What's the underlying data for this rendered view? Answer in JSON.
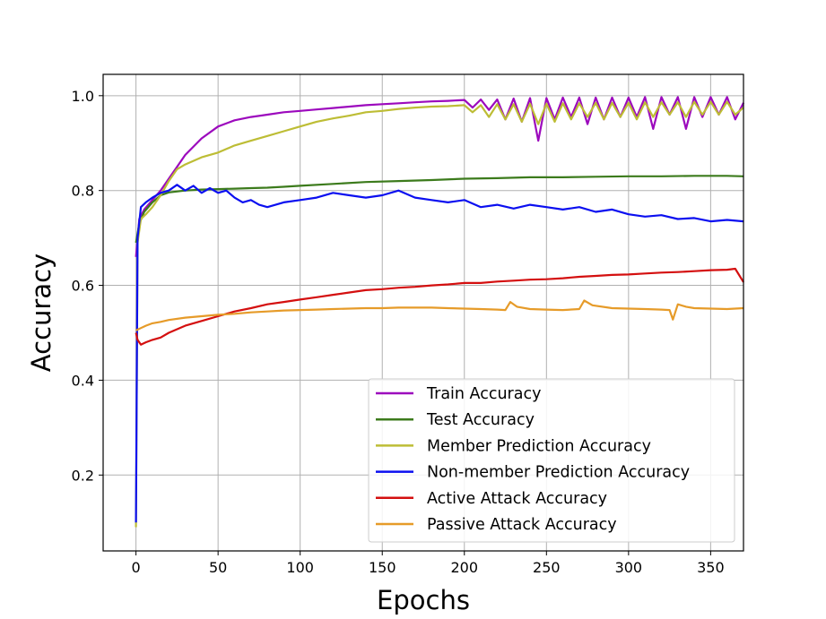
{
  "chart_data": {
    "type": "line",
    "title": "",
    "xlabel": "Epochs",
    "ylabel": "Accuracy",
    "xlim": [
      -20,
      370
    ],
    "ylim": [
      0.04,
      1.045
    ],
    "xticks": [
      0,
      50,
      100,
      150,
      200,
      250,
      300,
      350
    ],
    "yticks": [
      0.2,
      0.4,
      0.6,
      0.8,
      1.0
    ],
    "ytick_labels": [
      "0.2",
      "0.4",
      "0.6",
      "0.8",
      "1.0"
    ],
    "grid": true,
    "legend_position": "bottom-right",
    "series": [
      {
        "name": "Train Accuracy",
        "color": "#9c09bd",
        "points": [
          [
            0,
            0.66
          ],
          [
            2,
            0.74
          ],
          [
            5,
            0.76
          ],
          [
            10,
            0.78
          ],
          [
            15,
            0.8
          ],
          [
            20,
            0.825
          ],
          [
            25,
            0.85
          ],
          [
            30,
            0.875
          ],
          [
            40,
            0.91
          ],
          [
            50,
            0.935
          ],
          [
            60,
            0.948
          ],
          [
            70,
            0.955
          ],
          [
            80,
            0.96
          ],
          [
            90,
            0.965
          ],
          [
            100,
            0.968
          ],
          [
            110,
            0.971
          ],
          [
            120,
            0.974
          ],
          [
            130,
            0.977
          ],
          [
            140,
            0.98
          ],
          [
            150,
            0.982
          ],
          [
            160,
            0.984
          ],
          [
            170,
            0.986
          ],
          [
            180,
            0.988
          ],
          [
            190,
            0.989
          ],
          [
            200,
            0.991
          ],
          [
            205,
            0.975
          ],
          [
            210,
            0.992
          ],
          [
            215,
            0.97
          ],
          [
            220,
            0.992
          ],
          [
            225,
            0.95
          ],
          [
            230,
            0.994
          ],
          [
            235,
            0.945
          ],
          [
            240,
            0.995
          ],
          [
            245,
            0.905
          ],
          [
            250,
            0.995
          ],
          [
            255,
            0.95
          ],
          [
            260,
            0.996
          ],
          [
            265,
            0.955
          ],
          [
            270,
            0.996
          ],
          [
            275,
            0.94
          ],
          [
            280,
            0.996
          ],
          [
            285,
            0.95
          ],
          [
            290,
            0.996
          ],
          [
            295,
            0.955
          ],
          [
            300,
            0.996
          ],
          [
            305,
            0.955
          ],
          [
            310,
            0.997
          ],
          [
            315,
            0.93
          ],
          [
            320,
            0.997
          ],
          [
            325,
            0.96
          ],
          [
            330,
            0.997
          ],
          [
            335,
            0.93
          ],
          [
            340,
            0.997
          ],
          [
            345,
            0.955
          ],
          [
            350,
            0.997
          ],
          [
            355,
            0.96
          ],
          [
            360,
            0.997
          ],
          [
            365,
            0.95
          ],
          [
            370,
            0.985
          ]
        ]
      },
      {
        "name": "Test Accuracy",
        "color": "#3c7b1c",
        "points": [
          [
            0,
            0.69
          ],
          [
            2,
            0.73
          ],
          [
            5,
            0.755
          ],
          [
            10,
            0.775
          ],
          [
            15,
            0.79
          ],
          [
            20,
            0.796
          ],
          [
            30,
            0.8
          ],
          [
            40,
            0.802
          ],
          [
            50,
            0.803
          ],
          [
            60,
            0.804
          ],
          [
            70,
            0.805
          ],
          [
            80,
            0.806
          ],
          [
            90,
            0.808
          ],
          [
            100,
            0.81
          ],
          [
            120,
            0.814
          ],
          [
            140,
            0.818
          ],
          [
            160,
            0.82
          ],
          [
            180,
            0.822
          ],
          [
            200,
            0.825
          ],
          [
            220,
            0.826
          ],
          [
            240,
            0.828
          ],
          [
            260,
            0.828
          ],
          [
            280,
            0.829
          ],
          [
            300,
            0.83
          ],
          [
            320,
            0.83
          ],
          [
            340,
            0.831
          ],
          [
            360,
            0.831
          ],
          [
            370,
            0.83
          ]
        ]
      },
      {
        "name": "Member Prediction Accuracy",
        "color": "#bdbd35",
        "points": [
          [
            0,
            0.09
          ],
          [
            1,
            0.69
          ],
          [
            3,
            0.74
          ],
          [
            6,
            0.75
          ],
          [
            10,
            0.765
          ],
          [
            15,
            0.79
          ],
          [
            20,
            0.82
          ],
          [
            25,
            0.845
          ],
          [
            30,
            0.855
          ],
          [
            40,
            0.87
          ],
          [
            50,
            0.88
          ],
          [
            60,
            0.895
          ],
          [
            70,
            0.905
          ],
          [
            80,
            0.915
          ],
          [
            90,
            0.925
          ],
          [
            100,
            0.935
          ],
          [
            110,
            0.945
          ],
          [
            120,
            0.952
          ],
          [
            130,
            0.958
          ],
          [
            140,
            0.965
          ],
          [
            150,
            0.968
          ],
          [
            160,
            0.972
          ],
          [
            170,
            0.975
          ],
          [
            180,
            0.977
          ],
          [
            190,
            0.978
          ],
          [
            200,
            0.98
          ],
          [
            205,
            0.965
          ],
          [
            210,
            0.98
          ],
          [
            215,
            0.955
          ],
          [
            220,
            0.982
          ],
          [
            225,
            0.95
          ],
          [
            230,
            0.982
          ],
          [
            235,
            0.945
          ],
          [
            240,
            0.983
          ],
          [
            245,
            0.94
          ],
          [
            250,
            0.983
          ],
          [
            255,
            0.945
          ],
          [
            260,
            0.984
          ],
          [
            265,
            0.95
          ],
          [
            270,
            0.984
          ],
          [
            275,
            0.955
          ],
          [
            280,
            0.985
          ],
          [
            285,
            0.95
          ],
          [
            290,
            0.985
          ],
          [
            295,
            0.955
          ],
          [
            300,
            0.985
          ],
          [
            305,
            0.95
          ],
          [
            310,
            0.986
          ],
          [
            315,
            0.955
          ],
          [
            320,
            0.986
          ],
          [
            325,
            0.96
          ],
          [
            330,
            0.986
          ],
          [
            335,
            0.955
          ],
          [
            340,
            0.987
          ],
          [
            345,
            0.96
          ],
          [
            350,
            0.987
          ],
          [
            355,
            0.96
          ],
          [
            360,
            0.987
          ],
          [
            365,
            0.96
          ],
          [
            370,
            0.975
          ]
        ]
      },
      {
        "name": "Non-member Prediction Accuracy",
        "color": "#0b0ff0",
        "points": [
          [
            0,
            0.1
          ],
          [
            1,
            0.7
          ],
          [
            3,
            0.765
          ],
          [
            6,
            0.775
          ],
          [
            10,
            0.785
          ],
          [
            15,
            0.795
          ],
          [
            20,
            0.8
          ],
          [
            25,
            0.812
          ],
          [
            30,
            0.8
          ],
          [
            35,
            0.81
          ],
          [
            40,
            0.795
          ],
          [
            45,
            0.805
          ],
          [
            50,
            0.795
          ],
          [
            55,
            0.8
          ],
          [
            60,
            0.785
          ],
          [
            65,
            0.775
          ],
          [
            70,
            0.78
          ],
          [
            75,
            0.77
          ],
          [
            80,
            0.765
          ],
          [
            90,
            0.775
          ],
          [
            100,
            0.78
          ],
          [
            110,
            0.785
          ],
          [
            120,
            0.795
          ],
          [
            130,
            0.79
          ],
          [
            140,
            0.785
          ],
          [
            150,
            0.79
          ],
          [
            160,
            0.8
          ],
          [
            170,
            0.785
          ],
          [
            180,
            0.78
          ],
          [
            190,
            0.775
          ],
          [
            200,
            0.78
          ],
          [
            210,
            0.765
          ],
          [
            220,
            0.77
          ],
          [
            230,
            0.762
          ],
          [
            240,
            0.77
          ],
          [
            250,
            0.765
          ],
          [
            260,
            0.76
          ],
          [
            270,
            0.765
          ],
          [
            280,
            0.755
          ],
          [
            290,
            0.76
          ],
          [
            300,
            0.75
          ],
          [
            310,
            0.745
          ],
          [
            320,
            0.748
          ],
          [
            330,
            0.74
          ],
          [
            340,
            0.742
          ],
          [
            350,
            0.735
          ],
          [
            360,
            0.738
          ],
          [
            370,
            0.735
          ]
        ]
      },
      {
        "name": "Active Attack Accuracy",
        "color": "#d40f0f",
        "points": [
          [
            0,
            0.5
          ],
          [
            1,
            0.485
          ],
          [
            3,
            0.475
          ],
          [
            6,
            0.48
          ],
          [
            10,
            0.485
          ],
          [
            15,
            0.49
          ],
          [
            20,
            0.5
          ],
          [
            30,
            0.515
          ],
          [
            40,
            0.525
          ],
          [
            50,
            0.535
          ],
          [
            60,
            0.545
          ],
          [
            70,
            0.552
          ],
          [
            80,
            0.56
          ],
          [
            90,
            0.565
          ],
          [
            100,
            0.57
          ],
          [
            110,
            0.575
          ],
          [
            120,
            0.58
          ],
          [
            130,
            0.585
          ],
          [
            140,
            0.59
          ],
          [
            150,
            0.592
          ],
          [
            160,
            0.595
          ],
          [
            170,
            0.597
          ],
          [
            180,
            0.6
          ],
          [
            190,
            0.602
          ],
          [
            200,
            0.605
          ],
          [
            210,
            0.605
          ],
          [
            220,
            0.608
          ],
          [
            230,
            0.61
          ],
          [
            240,
            0.612
          ],
          [
            250,
            0.613
          ],
          [
            260,
            0.615
          ],
          [
            270,
            0.618
          ],
          [
            280,
            0.62
          ],
          [
            290,
            0.622
          ],
          [
            300,
            0.623
          ],
          [
            310,
            0.625
          ],
          [
            320,
            0.627
          ],
          [
            330,
            0.628
          ],
          [
            340,
            0.63
          ],
          [
            350,
            0.632
          ],
          [
            360,
            0.633
          ],
          [
            365,
            0.635
          ],
          [
            370,
            0.607
          ]
        ]
      },
      {
        "name": "Passive Attack Accuracy",
        "color": "#e69b29",
        "points": [
          [
            0,
            0.505
          ],
          [
            3,
            0.51
          ],
          [
            6,
            0.515
          ],
          [
            10,
            0.52
          ],
          [
            15,
            0.523
          ],
          [
            20,
            0.527
          ],
          [
            30,
            0.532
          ],
          [
            40,
            0.535
          ],
          [
            50,
            0.538
          ],
          [
            60,
            0.54
          ],
          [
            70,
            0.543
          ],
          [
            80,
            0.545
          ],
          [
            90,
            0.547
          ],
          [
            100,
            0.548
          ],
          [
            110,
            0.549
          ],
          [
            120,
            0.55
          ],
          [
            130,
            0.551
          ],
          [
            140,
            0.552
          ],
          [
            150,
            0.552
          ],
          [
            160,
            0.553
          ],
          [
            170,
            0.553
          ],
          [
            180,
            0.553
          ],
          [
            190,
            0.552
          ],
          [
            200,
            0.551
          ],
          [
            210,
            0.55
          ],
          [
            220,
            0.549
          ],
          [
            225,
            0.548
          ],
          [
            228,
            0.565
          ],
          [
            232,
            0.555
          ],
          [
            240,
            0.55
          ],
          [
            250,
            0.549
          ],
          [
            260,
            0.548
          ],
          [
            270,
            0.55
          ],
          [
            273,
            0.568
          ],
          [
            278,
            0.558
          ],
          [
            290,
            0.552
          ],
          [
            300,
            0.551
          ],
          [
            310,
            0.55
          ],
          [
            320,
            0.549
          ],
          [
            325,
            0.548
          ],
          [
            327,
            0.528
          ],
          [
            330,
            0.56
          ],
          [
            335,
            0.555
          ],
          [
            340,
            0.552
          ],
          [
            350,
            0.551
          ],
          [
            360,
            0.55
          ],
          [
            370,
            0.552
          ]
        ]
      }
    ]
  }
}
